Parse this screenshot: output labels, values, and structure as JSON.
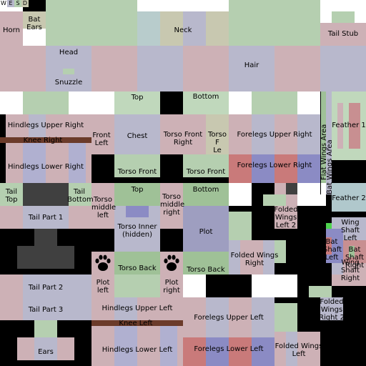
{
  "corner_letters": [
    "W",
    "E",
    "S",
    "D"
  ],
  "colors": {
    "background": "#000000",
    "white": "#ffffff",
    "green": "#b5cfb0",
    "green_light": "#c0d8bc",
    "green_mid": "#9fc197",
    "gray_blue": "#b8b8cc",
    "lavender": "#b0b0d0",
    "pink": "#cdb1b6",
    "rose": "#c88f91",
    "red": "#c97a7a",
    "blue_violet": "#8b8bc4",
    "dark_gray": "#404040",
    "brown": "#6b3b2a",
    "teal": "#b8cccc",
    "khaki": "#c8c8b0"
  },
  "labels": {
    "horn": "Horn",
    "bat_ears": "Bat\nEars",
    "neck": "Neck",
    "tail_stub": "Tail Stub",
    "head": "Head",
    "snuzzle": "Snuzzle",
    "hair": "Hair",
    "top_1": "Top",
    "bottom_1": "Bottom",
    "hindlegs_upper_right": "Hindlegs Upper Right",
    "front_left": "Front\nLeft",
    "chest": "Chest",
    "torso_front_right": "Torso Front\nRight",
    "torso_front_left_partial": "Torso F\nLe",
    "forelegs_upper_right": "Forelegs Upper Right",
    "feather_1": "Feather 1",
    "knee_right": "Knee Right",
    "flat_wings_area": "Flat Wings Area",
    "bat_wings_area": "Bat Wings Area",
    "hindlegs_lower_right": "Hindlegs Lower Right",
    "forelegs_lower_right": "Forelegs Lower Right",
    "torso_front_1": "Torso Front",
    "torso_front_2": "Torso Front",
    "tail_top": "Tail\nTop",
    "tail_bottom": "Tail\nBottom",
    "top_2": "Top",
    "bottom_2": "Bottom",
    "torso_middle_left": "Torso\nmiddle\nleft",
    "torso_middle_right": "Torso\nmiddle\nright",
    "feather_2": "Feather 2",
    "tail_part_1": "Tail Part 1",
    "folded_wings_left_2": "Folded\nWings\nLeft 2",
    "torso_inner": "Torso Inner\n(hidden)",
    "plot": "Plot",
    "wing_shaft_left": "Wing\nShaft\nLeft",
    "bat_shaft_left": "Bat\nShaft\nLeft",
    "bat_shaft_right": "Bat\nShaft\nRight",
    "folded_wings_right": "Folded Wings\nRight",
    "torso_back_1": "Torso Back",
    "torso_back_2": "Torso Back",
    "wing_shaft_right": "Wing\nShaft\nRight",
    "tail_part_2": "Tail Part 2",
    "plot_left": "Plot\nleft",
    "plot_right": "Plot\nright",
    "tail_part_3": "Tail Part 3",
    "hindlegs_upper_left": "Hindlegs Upper Left",
    "forelegs_upper_left": "Forelegs Upper Left",
    "folded_wings_right_2": "Folded\nWings\nRight 2",
    "knee_left": "Knee Left",
    "ears": "Ears",
    "hindlegs_lower_left": "Hindlegs Lower Left",
    "forelegs_lower_left": "Forelegs Lower Left",
    "folded_wings_left": "Folded Wings\nLeft"
  },
  "icons": {
    "paw_left": "paw-print-icon",
    "paw_right": "paw-print-icon"
  }
}
